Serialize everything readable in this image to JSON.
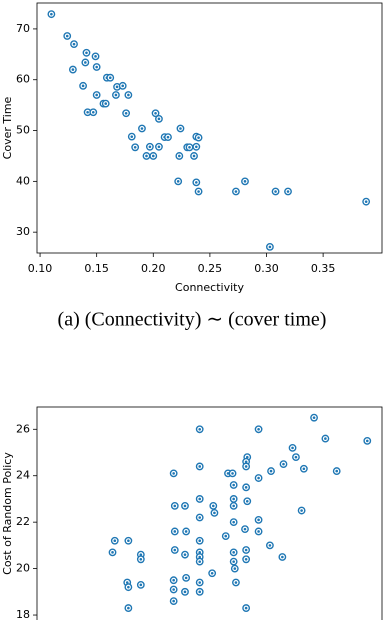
{
  "chart_data": [
    {
      "type": "scatter",
      "xlabel": "Connectivity",
      "ylabel": "Cover Time",
      "caption": "(a) (Connectivity) ∼ (cover time)",
      "color": "#1f77b4",
      "xlim": [
        0.0973,
        0.402
      ],
      "ylim": [
        25.9,
        75.1
      ],
      "xticks": [
        {
          "value": 0.1,
          "label": "0.10"
        },
        {
          "value": 0.15,
          "label": "0.15"
        },
        {
          "value": 0.2,
          "label": "0.20"
        },
        {
          "value": 0.25,
          "label": "0.25"
        },
        {
          "value": 0.3,
          "label": "0.30"
        },
        {
          "value": 0.35,
          "label": "0.35"
        }
      ],
      "yticks": [
        30,
        40,
        50,
        60,
        70
      ],
      "x": [
        0.11,
        0.124,
        0.13,
        0.129,
        0.141,
        0.138,
        0.14,
        0.149,
        0.15,
        0.142,
        0.147,
        0.15,
        0.156,
        0.158,
        0.159,
        0.162,
        0.168,
        0.173,
        0.167,
        0.178,
        0.176,
        0.181,
        0.184,
        0.19,
        0.194,
        0.197,
        0.2,
        0.202,
        0.205,
        0.21,
        0.213,
        0.205,
        0.224,
        0.223,
        0.222,
        0.23,
        0.232,
        0.238,
        0.24,
        0.238,
        0.236,
        0.238,
        0.24,
        0.273,
        0.281,
        0.308,
        0.319,
        0.303,
        0.388
      ],
      "values": [
        72.9,
        68.6,
        67.0,
        62.0,
        65.3,
        58.8,
        63.4,
        64.6,
        62.5,
        53.6,
        53.6,
        57.0,
        55.3,
        55.3,
        60.4,
        60.4,
        58.6,
        58.8,
        57.0,
        57.0,
        53.4,
        48.8,
        46.7,
        50.4,
        45.0,
        46.8,
        45.0,
        53.4,
        52.3,
        48.7,
        48.7,
        46.8,
        50.4,
        45.0,
        40.0,
        46.7,
        46.7,
        48.8,
        48.6,
        46.8,
        45.0,
        39.8,
        38.0,
        38.0,
        40.0,
        38.0,
        38.0,
        27.1,
        36.0
      ]
    },
    {
      "type": "scatter",
      "ylabel": "Cost of Random Policy",
      "color": "#1f77b4",
      "xlim": [
        0.0973,
        0.402
      ],
      "ylim": [
        17.7,
        26.96
      ],
      "yticks": [
        18,
        20,
        22,
        24,
        26
      ],
      "x": [
        0.166,
        0.164,
        0.178,
        0.177,
        0.178,
        0.178,
        0.189,
        0.189,
        0.189,
        0.218,
        0.219,
        0.219,
        0.219,
        0.218,
        0.218,
        0.218,
        0.228,
        0.229,
        0.228,
        0.229,
        0.228,
        0.241,
        0.241,
        0.241,
        0.241,
        0.241,
        0.241,
        0.241,
        0.241,
        0.241,
        0.241,
        0.253,
        0.254,
        0.252,
        0.264,
        0.266,
        0.27,
        0.271,
        0.271,
        0.271,
        0.271,
        0.271,
        0.271,
        0.272,
        0.273,
        0.283,
        0.282,
        0.282,
        0.282,
        0.283,
        0.281,
        0.282,
        0.282,
        0.282,
        0.293,
        0.293,
        0.293,
        0.293,
        0.304,
        0.303,
        0.315,
        0.314,
        0.323,
        0.326,
        0.331,
        0.333,
        0.342,
        0.352,
        0.362,
        0.389
      ],
      "values": [
        21.2,
        20.7,
        21.2,
        19.4,
        19.2,
        18.3,
        20.6,
        20.4,
        19.3,
        24.1,
        22.7,
        21.6,
        20.8,
        19.5,
        19.1,
        18.6,
        22.7,
        21.6,
        20.6,
        19.6,
        19.0,
        26.0,
        24.4,
        23.0,
        22.2,
        21.2,
        20.7,
        20.5,
        20.3,
        19.4,
        19.0,
        22.7,
        22.4,
        19.8,
        21.4,
        24.1,
        24.1,
        23.6,
        23.0,
        22.7,
        22.0,
        20.7,
        20.3,
        20.0,
        19.4,
        24.8,
        24.6,
        24.4,
        23.5,
        22.9,
        21.7,
        20.8,
        20.4,
        18.3,
        26.0,
        23.9,
        22.1,
        21.6,
        24.2,
        21.0,
        24.5,
        20.5,
        25.2,
        24.8,
        22.5,
        24.3,
        26.5,
        25.6,
        24.2,
        25.5
      ]
    }
  ]
}
